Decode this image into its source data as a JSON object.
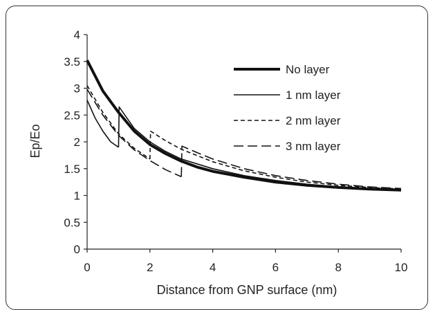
{
  "chart_data": {
    "type": "line",
    "title": "",
    "xlabel": "Distance from GNP surface (nm)",
    "ylabel": "Ep/Eo",
    "xlim": [
      0,
      10
    ],
    "ylim": [
      0,
      4
    ],
    "x_ticks": [
      "0",
      "2",
      "4",
      "6",
      "8",
      "10"
    ],
    "y_ticks": [
      "0",
      "0.5",
      "1",
      "1.5",
      "2",
      "2.5",
      "3",
      "3.5",
      "4"
    ],
    "grid": false,
    "legend_position": "top-right",
    "series": [
      {
        "name": "No layer",
        "style": "thick-solid",
        "segments": [
          {
            "x": [
              0,
              0.5,
              1,
              1.5,
              2,
              2.5,
              3,
              3.5,
              4,
              5,
              6,
              7,
              8,
              9,
              10
            ],
            "y": [
              3.52,
              2.95,
              2.55,
              2.2,
              1.95,
              1.78,
              1.64,
              1.53,
              1.45,
              1.34,
              1.25,
              1.19,
              1.15,
              1.12,
              1.1
            ]
          }
        ]
      },
      {
        "name": "1 nm layer",
        "style": "thin-solid",
        "segments": [
          {
            "x": [
              0,
              0.25,
              0.5,
              0.75,
              1.0
            ],
            "y": [
              2.78,
              2.45,
              2.2,
              2.0,
              1.9
            ]
          },
          {
            "x": [
              1.0,
              1.02,
              1.5,
              2,
              2.5,
              3,
              4,
              5,
              6,
              7,
              8,
              9,
              10
            ],
            "y": [
              1.9,
              2.65,
              2.25,
              2.0,
              1.82,
              1.68,
              1.5,
              1.37,
              1.28,
              1.21,
              1.16,
              1.13,
              1.11
            ]
          }
        ]
      },
      {
        "name": "2 nm layer",
        "style": "short-dash",
        "segments": [
          {
            "x": [
              0,
              0.5,
              1.0,
              1.5,
              2.0
            ],
            "y": [
              3.05,
              2.55,
              2.15,
              1.88,
              1.68
            ]
          },
          {
            "x": [
              2.0,
              2.02,
              2.5,
              3,
              4,
              5,
              6,
              7,
              8,
              9,
              10
            ],
            "y": [
              1.68,
              2.2,
              2.02,
              1.86,
              1.63,
              1.46,
              1.34,
              1.25,
              1.19,
              1.15,
              1.12
            ]
          }
        ]
      },
      {
        "name": "3 nm layer",
        "style": "long-dash",
        "segments": [
          {
            "x": [
              0,
              0.5,
              1.0,
              1.5,
              2.0,
              2.5,
              3.0
            ],
            "y": [
              2.98,
              2.5,
              2.12,
              1.85,
              1.65,
              1.48,
              1.35
            ]
          },
          {
            "x": [
              3.0,
              3.02,
              3.5,
              4,
              5,
              6,
              7,
              8,
              9,
              10
            ],
            "y": [
              1.35,
              1.92,
              1.8,
              1.68,
              1.5,
              1.37,
              1.28,
              1.21,
              1.16,
              1.13
            ]
          }
        ]
      }
    ]
  }
}
